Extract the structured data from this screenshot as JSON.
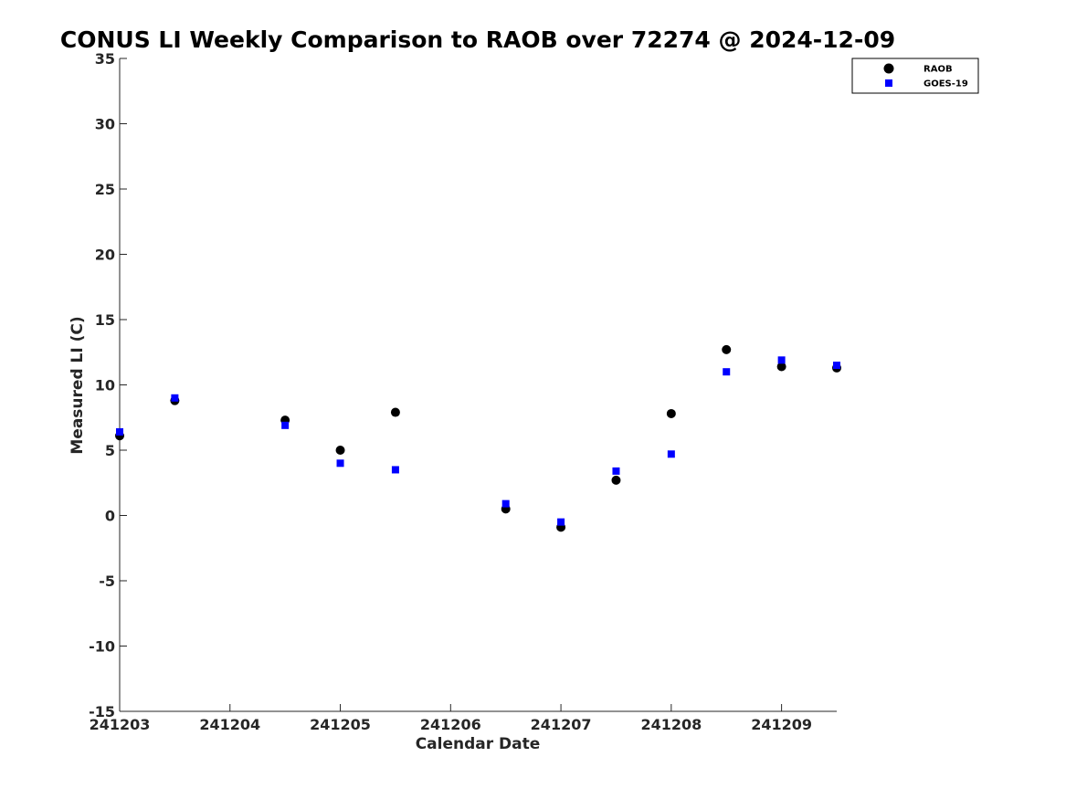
{
  "chart_data": {
    "type": "scatter",
    "title": "CONUS LI Weekly Comparison to RAOB over 72274 @ 2024-12-09",
    "xlabel": "Calendar Date",
    "ylabel": "Measured LI (C)",
    "xlim": [
      241203,
      241209.5
    ],
    "ylim": [
      -15,
      35
    ],
    "x_ticks": [
      241203,
      241204,
      241205,
      241206,
      241207,
      241208,
      241209
    ],
    "x_tick_labels": [
      "241203",
      "241204",
      "241205",
      "241206",
      "241207",
      "241208",
      "241209"
    ],
    "y_ticks": [
      -15,
      -10,
      -5,
      0,
      5,
      10,
      15,
      20,
      25,
      30,
      35
    ],
    "y_tick_labels": [
      "-15",
      "-10",
      "-5",
      "0",
      "5",
      "10",
      "15",
      "20",
      "25",
      "30",
      "35"
    ],
    "grid": false,
    "legend_position": "top-right",
    "series": [
      {
        "name": "RAOB",
        "marker": "circle",
        "color": "#000000",
        "x": [
          241203.0,
          241203.5,
          241204.5,
          241205.0,
          241205.5,
          241206.5,
          241207.0,
          241207.5,
          241208.0,
          241208.5,
          241209.0,
          241209.5
        ],
        "y": [
          6.1,
          8.8,
          7.3,
          5.0,
          7.9,
          0.5,
          -0.9,
          2.7,
          7.8,
          12.7,
          11.4,
          11.3
        ]
      },
      {
        "name": "GOES-19",
        "marker": "square",
        "color": "#0000ff",
        "x": [
          241203.0,
          241203.5,
          241204.5,
          241205.0,
          241205.5,
          241206.5,
          241207.0,
          241207.5,
          241208.0,
          241208.5,
          241209.0,
          241209.5
        ],
        "y": [
          6.4,
          9.0,
          6.9,
          4.0,
          3.5,
          0.9,
          -0.5,
          3.4,
          4.7,
          11.0,
          11.9,
          11.5
        ]
      }
    ]
  }
}
